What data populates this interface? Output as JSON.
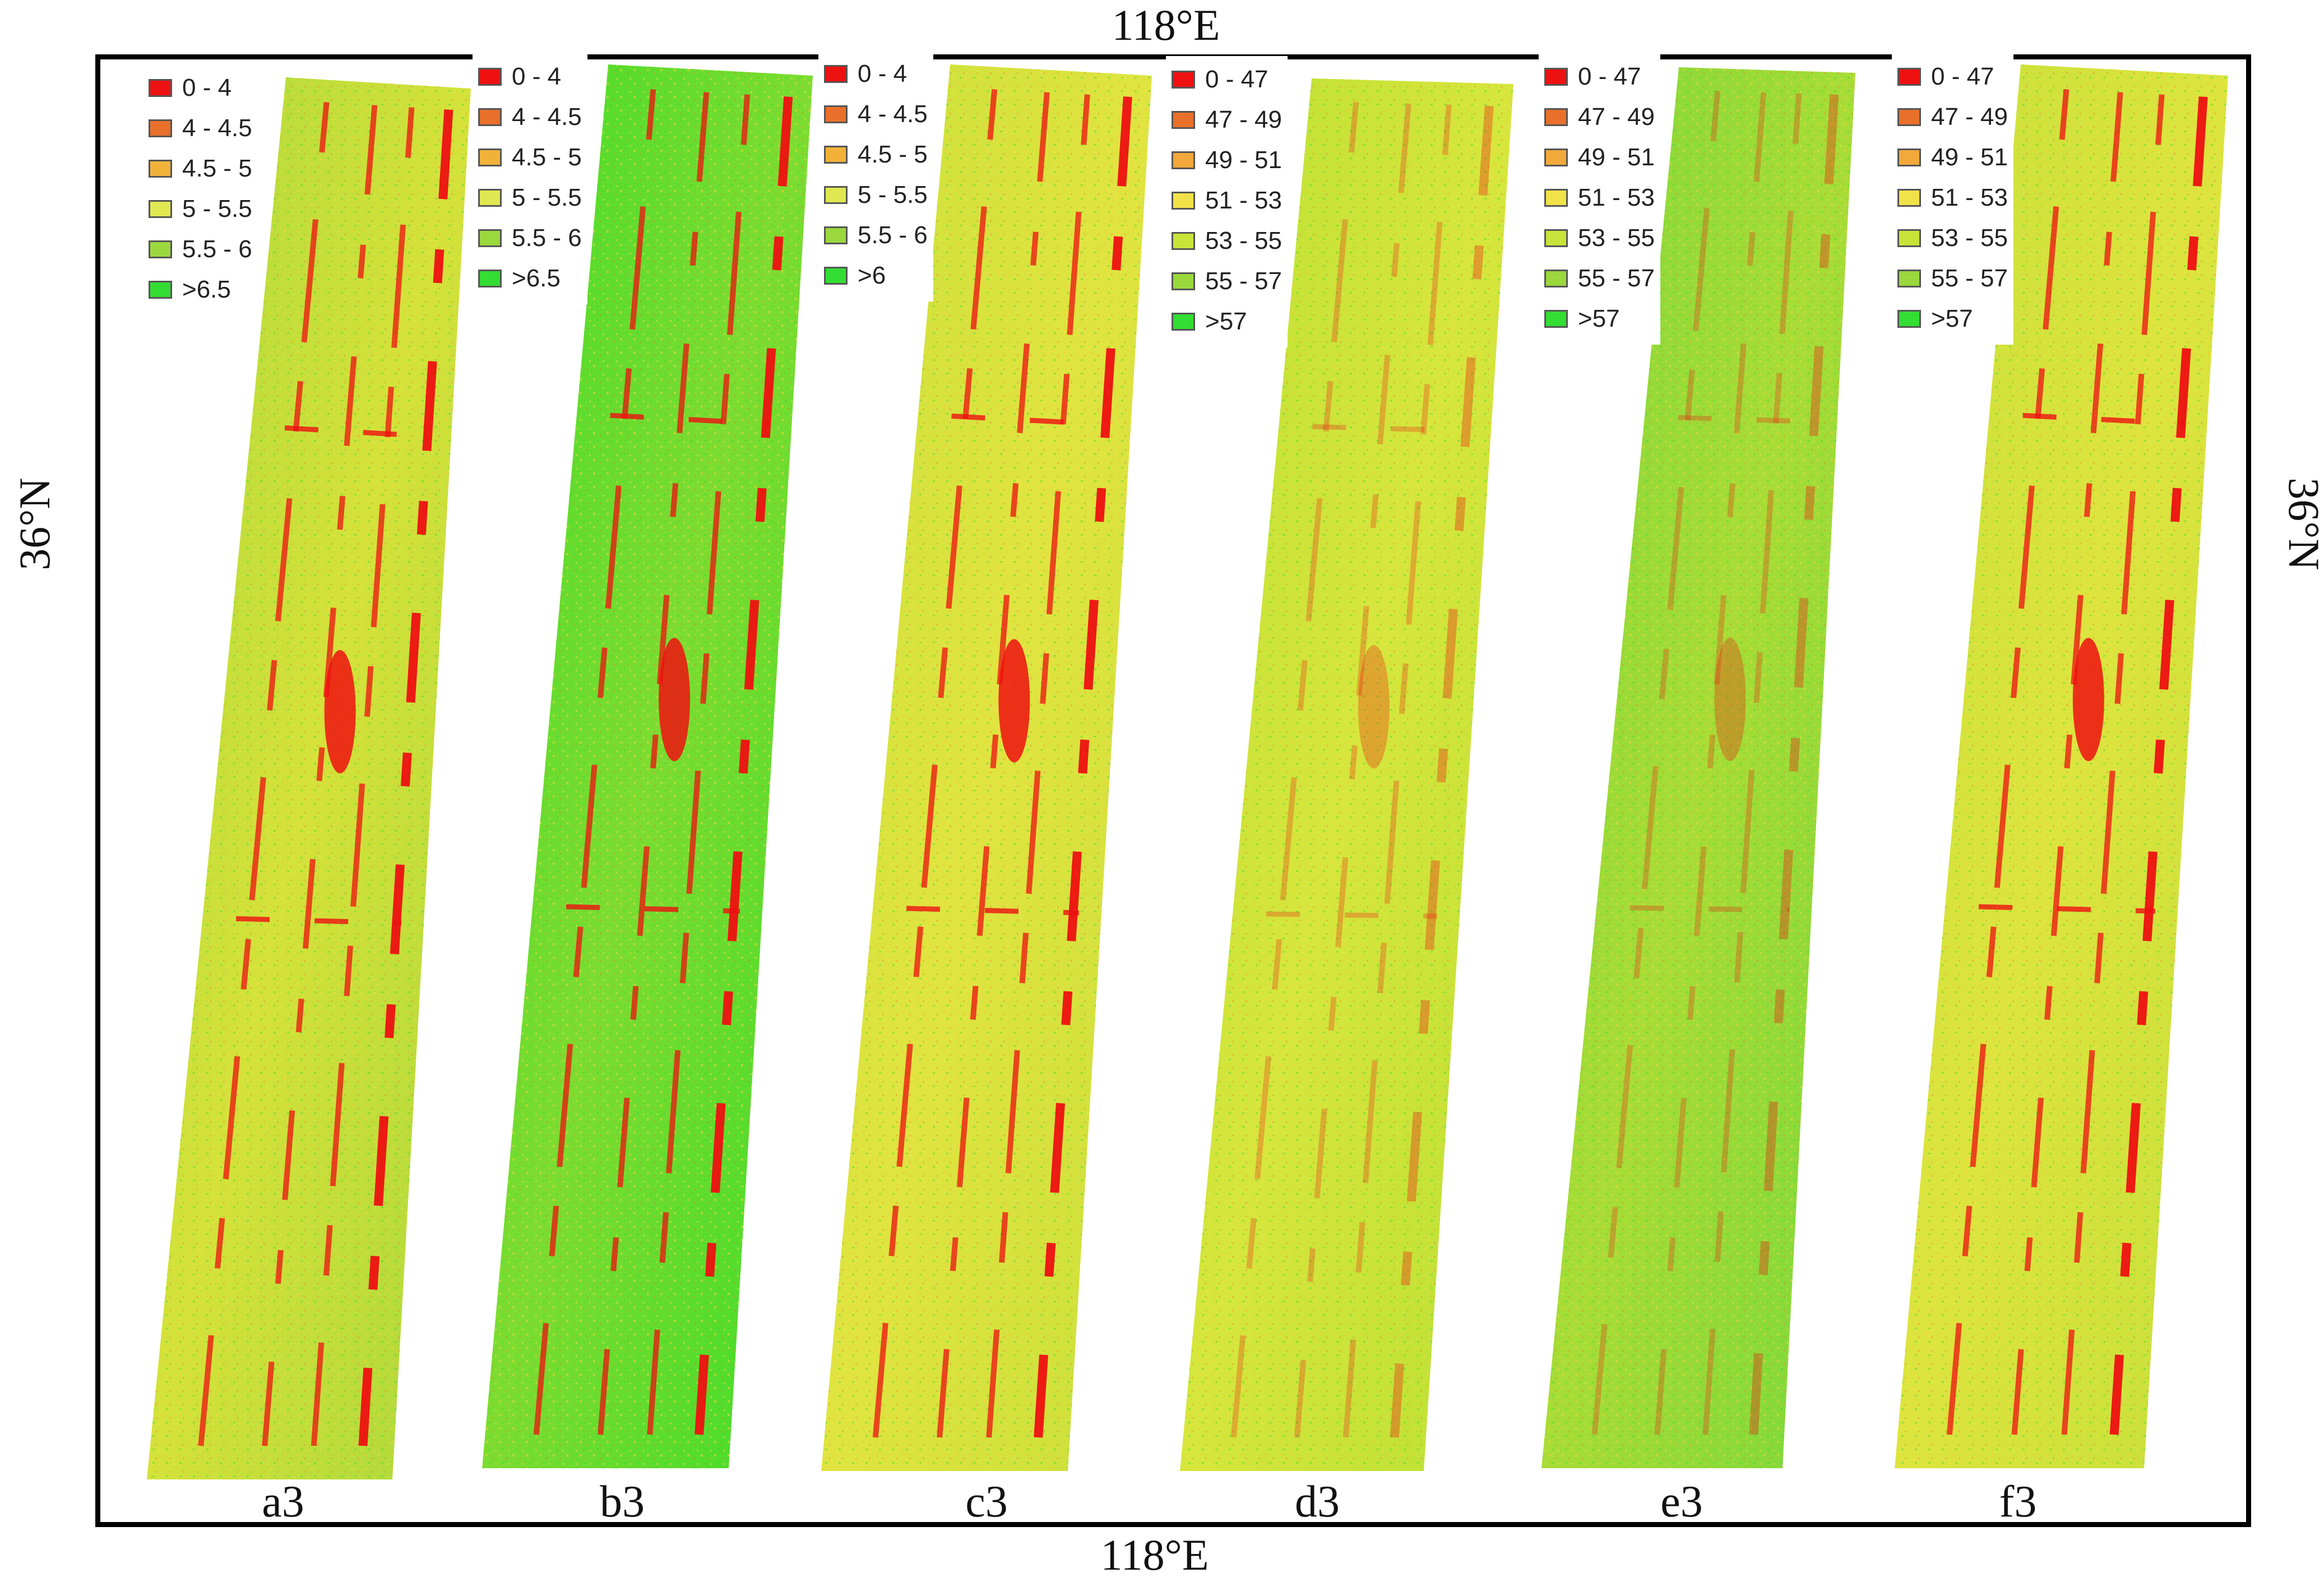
{
  "coordinates": {
    "top": "118°E",
    "bottom": "118°E",
    "left": "36°N",
    "right": "36°N"
  },
  "palette": {
    "red": "#ee1111",
    "orange": "#e8702a",
    "light_orange": "#f2a83a",
    "yellow": "#f2e24a",
    "yellow_green": "#c8e43a",
    "light_green": "#9ad83e",
    "green": "#33dd33"
  },
  "panels": [
    {
      "label": "a3",
      "legend": [
        {
          "text": "0 - 4",
          "color": "#ee1111"
        },
        {
          "text": "4 - 4.5",
          "color": "#e8702a"
        },
        {
          "text": "4.5 - 5",
          "color": "#f2b23a"
        },
        {
          "text": "5 - 5.5",
          "color": "#dfe850"
        },
        {
          "text": "5.5 - 6",
          "color": "#9ad83e"
        },
        {
          "text": ">6.5",
          "color": "#33dd33"
        }
      ],
      "field_tone": [
        "#a8d83a",
        "#d4e23a"
      ]
    },
    {
      "label": "b3",
      "legend": [
        {
          "text": "0 - 4",
          "color": "#ee1111"
        },
        {
          "text": "4 - 4.5",
          "color": "#e8702a"
        },
        {
          "text": "4.5 - 5",
          "color": "#f2b23a"
        },
        {
          "text": "5 - 5.5",
          "color": "#dfe850"
        },
        {
          "text": "5.5 - 6",
          "color": "#9ad83e"
        },
        {
          "text": ">6.5",
          "color": "#33dd33"
        }
      ],
      "field_tone": [
        "#3fdc2a",
        "#7ddc30"
      ]
    },
    {
      "label": "c3",
      "legend": [
        {
          "text": "0 - 4",
          "color": "#ee1111"
        },
        {
          "text": "4 - 4.5",
          "color": "#e8702a"
        },
        {
          "text": "4.5 - 5",
          "color": "#f2b23a"
        },
        {
          "text": "5 - 5.5",
          "color": "#dfe850"
        },
        {
          "text": "5.5 - 6",
          "color": "#9ad83e"
        },
        {
          "text": ">6",
          "color": "#33dd33"
        }
      ],
      "field_tone": [
        "#c8e03a",
        "#e0e440"
      ]
    },
    {
      "label": "d3",
      "legend": [
        {
          "text": "0 - 47",
          "color": "#ee1111"
        },
        {
          "text": "47 - 49",
          "color": "#e8702a"
        },
        {
          "text": "49 - 51",
          "color": "#f2a83a"
        },
        {
          "text": "51 - 53",
          "color": "#f2e24a"
        },
        {
          "text": "53 - 55",
          "color": "#c8e43a"
        },
        {
          "text": "55 - 57",
          "color": "#9ad83e"
        },
        {
          "text": ">57",
          "color": "#33dd33"
        }
      ],
      "field_tone": [
        "#b8e034",
        "#d6e63c"
      ]
    },
    {
      "label": "e3",
      "legend": [
        {
          "text": "0 - 47",
          "color": "#ee1111"
        },
        {
          "text": "47 - 49",
          "color": "#e8702a"
        },
        {
          "text": "49 - 51",
          "color": "#f2a83a"
        },
        {
          "text": "51 - 53",
          "color": "#f2e24a"
        },
        {
          "text": "53 - 55",
          "color": "#c8e43a"
        },
        {
          "text": "55 - 57",
          "color": "#9ad83e"
        },
        {
          "text": ">57",
          "color": "#33dd33"
        }
      ],
      "field_tone": [
        "#7ad83a",
        "#a8dc36"
      ]
    },
    {
      "label": "f3",
      "legend": [
        {
          "text": "0 - 47",
          "color": "#ee1111"
        },
        {
          "text": "47 - 49",
          "color": "#e8702a"
        },
        {
          "text": "49 - 51",
          "color": "#f2a83a"
        },
        {
          "text": "51 - 53",
          "color": "#f2e24a"
        },
        {
          "text": "53 - 55",
          "color": "#c8e43a"
        },
        {
          "text": "55 - 57",
          "color": "#9ad83e"
        },
        {
          "text": ">57",
          "color": "#33dd33"
        }
      ],
      "field_tone": [
        "#c4e03a",
        "#dde43e"
      ]
    }
  ]
}
